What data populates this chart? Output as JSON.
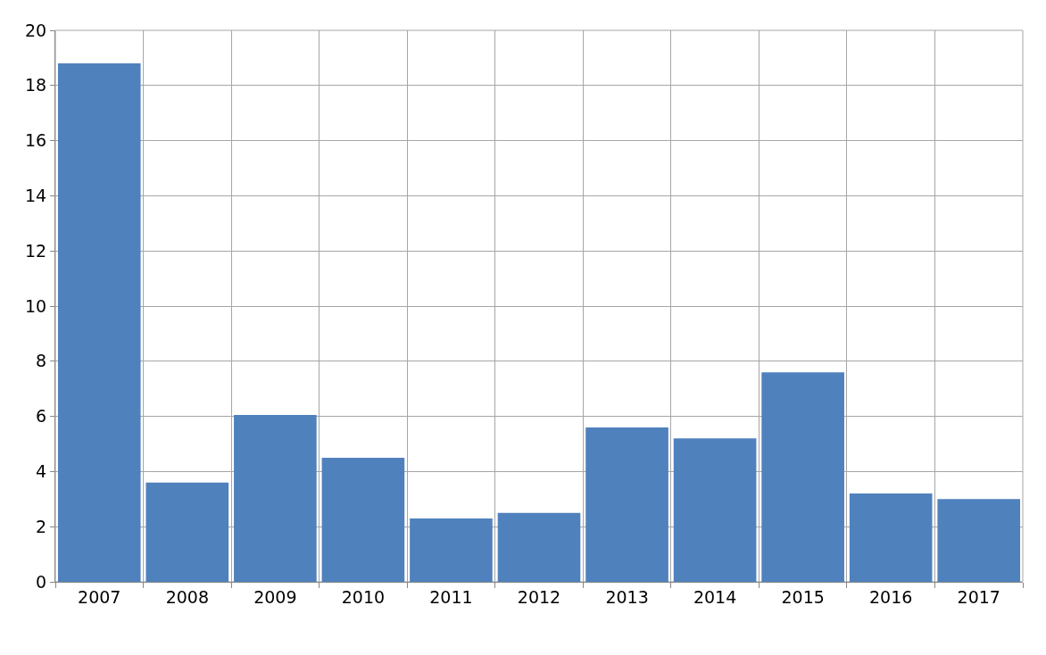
{
  "chart_data": {
    "type": "bar",
    "categories": [
      "2007",
      "2008",
      "2009",
      "2010",
      "2011",
      "2012",
      "2013",
      "2014",
      "2015",
      "2016",
      "2017"
    ],
    "values": [
      18.8,
      3.6,
      6.05,
      4.5,
      2.3,
      2.5,
      5.6,
      5.2,
      7.6,
      3.2,
      3.0
    ],
    "color": "#4f81bd",
    "ylim": [
      0,
      20
    ],
    "yticks": [
      0,
      2,
      4,
      6,
      8,
      10,
      12,
      14,
      16,
      18,
      20
    ],
    "grid": true
  }
}
